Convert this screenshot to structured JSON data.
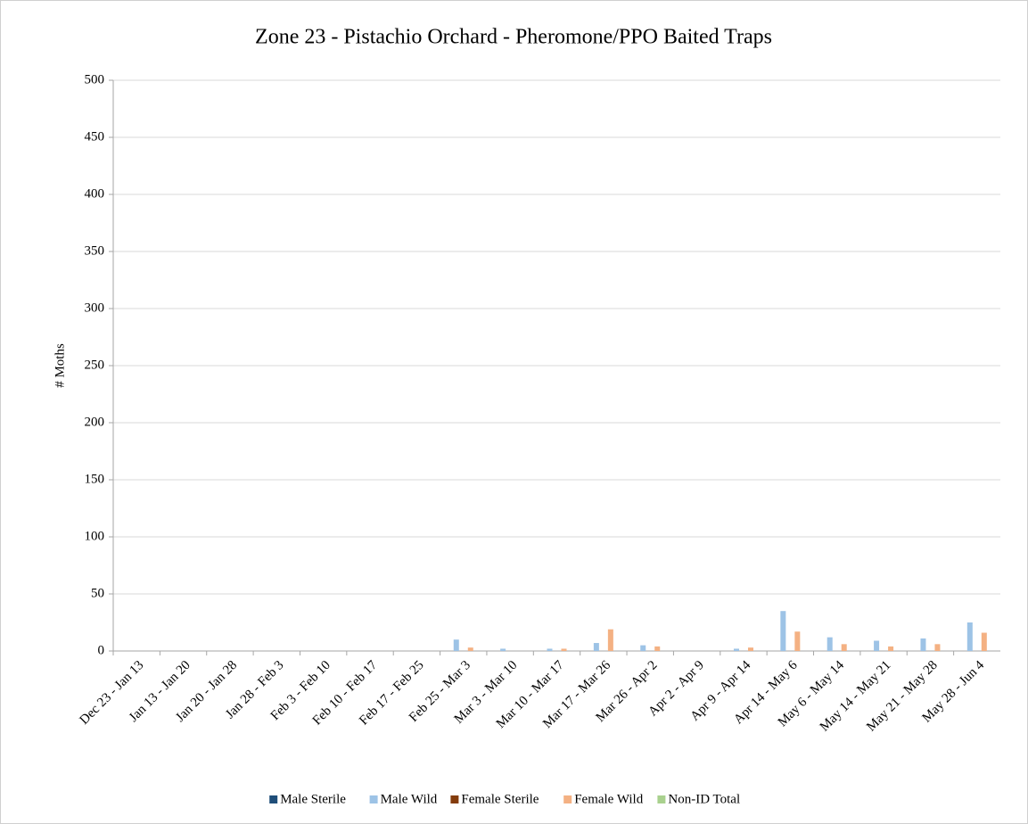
{
  "chart_data": {
    "type": "bar",
    "title": "Zone 23 - Pistachio Orchard - Pheromone/PPO Baited Traps",
    "y_label": "# Moths",
    "categories": [
      "Dec 23 - Jan 13",
      "Jan 13 - Jan 20",
      "Jan 20 - Jan 28",
      "Jan 28 - Feb 3",
      "Feb 3 - Feb 10",
      "Feb 10 - Feb 17",
      "Feb 17 - Feb 25",
      "Feb 25 - Mar 3",
      "Mar 3 - Mar 10",
      "Mar 10 - Mar 17",
      "Mar 17 - Mar 26",
      "Mar 26 - Apr 2",
      "Apr 2 - Apr 9",
      "Apr 9 - Apr 14",
      "Apr 14 - May 6",
      "May 6 - May 14",
      "May 14 - May 21",
      "May 21 - May 28",
      "May 28 - Jun 4"
    ],
    "series": [
      {
        "name": "Male Sterile",
        "color": "#1f4e79",
        "values": [
          0,
          0,
          0,
          0,
          0,
          0,
          0,
          0,
          0,
          0,
          0,
          0,
          0,
          0,
          0,
          0,
          0,
          0,
          0
        ]
      },
      {
        "name": "Male Wild",
        "color": "#9dc3e6",
        "values": [
          0,
          0,
          0,
          0,
          0,
          0,
          0,
          10,
          2,
          2,
          7,
          5,
          0,
          2,
          35,
          12,
          9,
          11,
          25
        ]
      },
      {
        "name": "Female Sterile",
        "color": "#843c0c",
        "values": [
          0,
          0,
          0,
          0,
          0,
          0,
          0,
          0,
          0,
          0,
          0,
          0,
          0,
          0,
          0,
          0,
          0,
          0,
          0
        ]
      },
      {
        "name": "Female Wild",
        "color": "#f4b183",
        "values": [
          0,
          0,
          0,
          0,
          0,
          0,
          0,
          3,
          0,
          2,
          19,
          4,
          0,
          3,
          17,
          6,
          4,
          6,
          16
        ]
      },
      {
        "name": "Non-ID Total",
        "color": "#a9d18e",
        "values": [
          0,
          0,
          0,
          0,
          0,
          0,
          0,
          0,
          0,
          0,
          0,
          0,
          0,
          0,
          0,
          0,
          0,
          0,
          0
        ]
      }
    ],
    "ylim": [
      0,
      500
    ],
    "yticks": [
      0,
      50,
      100,
      150,
      200,
      250,
      300,
      350,
      400,
      450,
      500
    ],
    "grid": true,
    "legend": "bottom"
  }
}
